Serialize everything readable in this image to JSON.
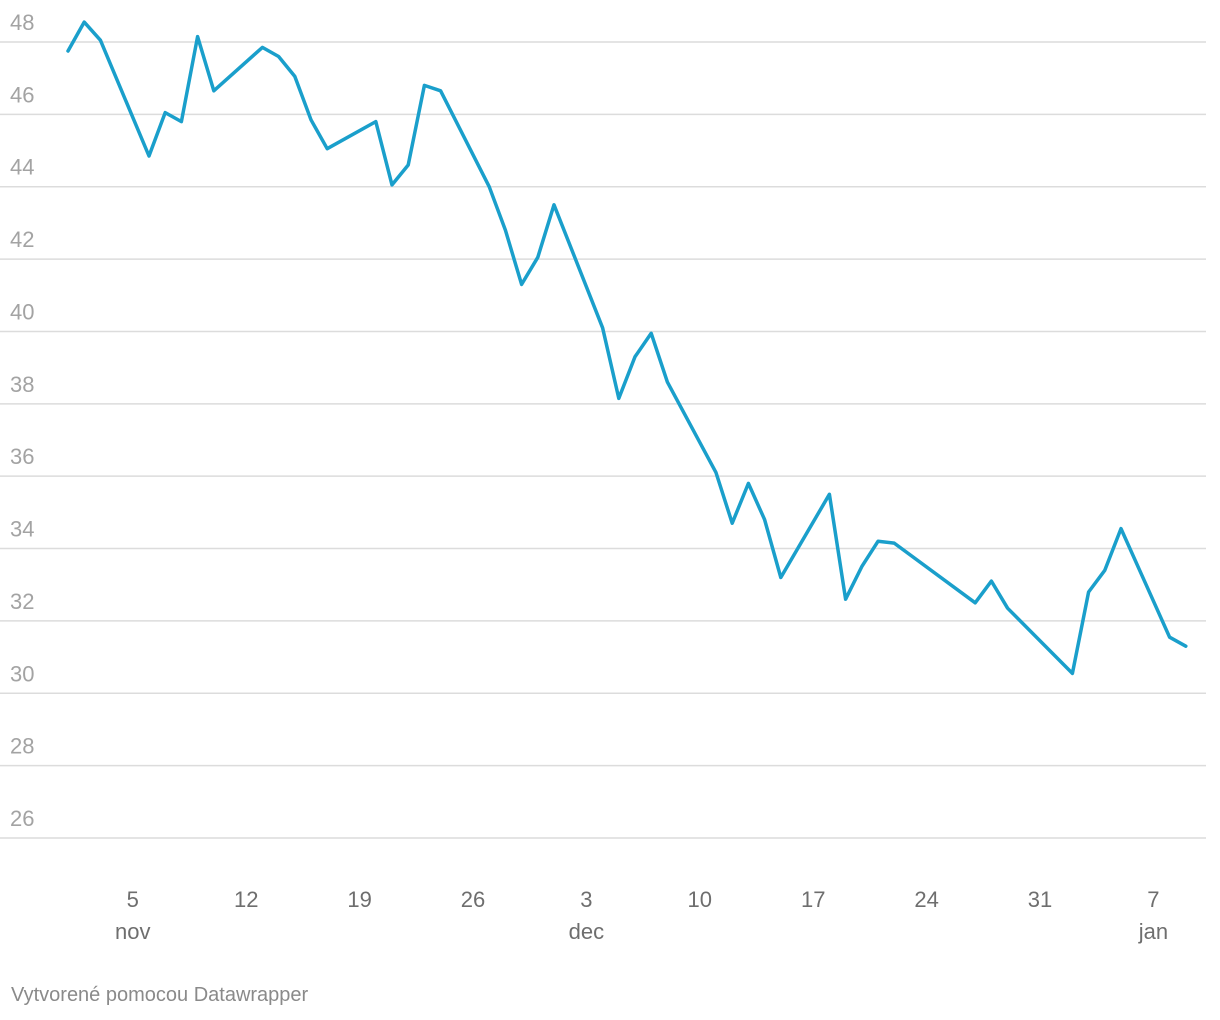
{
  "footer": {
    "credit": "Vytvorené pomocou Datawrapper"
  },
  "colors": {
    "line": "#1a9fcb",
    "grid": "#dcdcdc",
    "y_tick_text": "#a3a3a3",
    "x_tick_text": "#6e6e6e",
    "footer_text": "#8a8a8a"
  },
  "chart_data": {
    "type": "line",
    "title": "",
    "xlabel": "",
    "ylabel": "",
    "grid": true,
    "legend": "none",
    "ylim": [
      25,
      48.6
    ],
    "xlim": [
      "2023-10-31",
      "2024-01-09"
    ],
    "y_ticks": [
      26,
      28,
      30,
      32,
      34,
      36,
      38,
      40,
      42,
      44,
      46,
      48
    ],
    "x_ticks": [
      {
        "date": "2023-11-05",
        "label": "5",
        "month": "nov"
      },
      {
        "date": "2023-11-12",
        "label": "12",
        "month": ""
      },
      {
        "date": "2023-11-19",
        "label": "19",
        "month": ""
      },
      {
        "date": "2023-11-26",
        "label": "26",
        "month": ""
      },
      {
        "date": "2023-12-03",
        "label": "3",
        "month": "dec"
      },
      {
        "date": "2023-12-10",
        "label": "10",
        "month": ""
      },
      {
        "date": "2023-12-17",
        "label": "17",
        "month": ""
      },
      {
        "date": "2023-12-24",
        "label": "24",
        "month": ""
      },
      {
        "date": "2023-12-31",
        "label": "31",
        "month": ""
      },
      {
        "date": "2024-01-07",
        "label": "7",
        "month": "jan"
      }
    ],
    "series": [
      {
        "x": [
          "2023-11-01",
          "2023-11-02",
          "2023-11-03",
          "2023-11-06",
          "2023-11-07",
          "2023-11-08",
          "2023-11-09",
          "2023-11-10",
          "2023-11-13",
          "2023-11-14",
          "2023-11-15",
          "2023-11-16",
          "2023-11-17",
          "2023-11-20",
          "2023-11-21",
          "2023-11-22",
          "2023-11-23",
          "2023-11-24",
          "2023-11-27",
          "2023-11-28",
          "2023-11-29",
          "2023-11-30",
          "2023-12-01",
          "2023-12-04",
          "2023-12-05",
          "2023-12-06",
          "2023-12-07",
          "2023-12-08",
          "2023-12-11",
          "2023-12-12",
          "2023-12-13",
          "2023-12-14",
          "2023-12-15",
          "2023-12-18",
          "2023-12-19",
          "2023-12-20",
          "2023-12-21",
          "2023-12-22",
          "2023-12-27",
          "2023-12-28",
          "2023-12-29",
          "2024-01-02",
          "2024-01-03",
          "2024-01-04",
          "2024-01-05",
          "2024-01-08",
          "2024-01-09"
        ],
        "values": [
          47.75,
          48.55,
          48.05,
          44.85,
          46.05,
          45.8,
          48.15,
          46.65,
          47.85,
          47.6,
          47.05,
          45.85,
          45.05,
          45.8,
          44.05,
          44.6,
          46.8,
          46.65,
          44.0,
          42.8,
          41.3,
          42.05,
          43.5,
          40.1,
          38.15,
          39.3,
          39.95,
          38.6,
          36.1,
          34.7,
          35.8,
          34.8,
          33.2,
          35.5,
          32.6,
          33.5,
          34.2,
          34.15,
          32.5,
          33.1,
          32.35,
          30.55,
          32.8,
          33.4,
          34.55,
          31.55,
          31.3
        ]
      }
    ]
  }
}
